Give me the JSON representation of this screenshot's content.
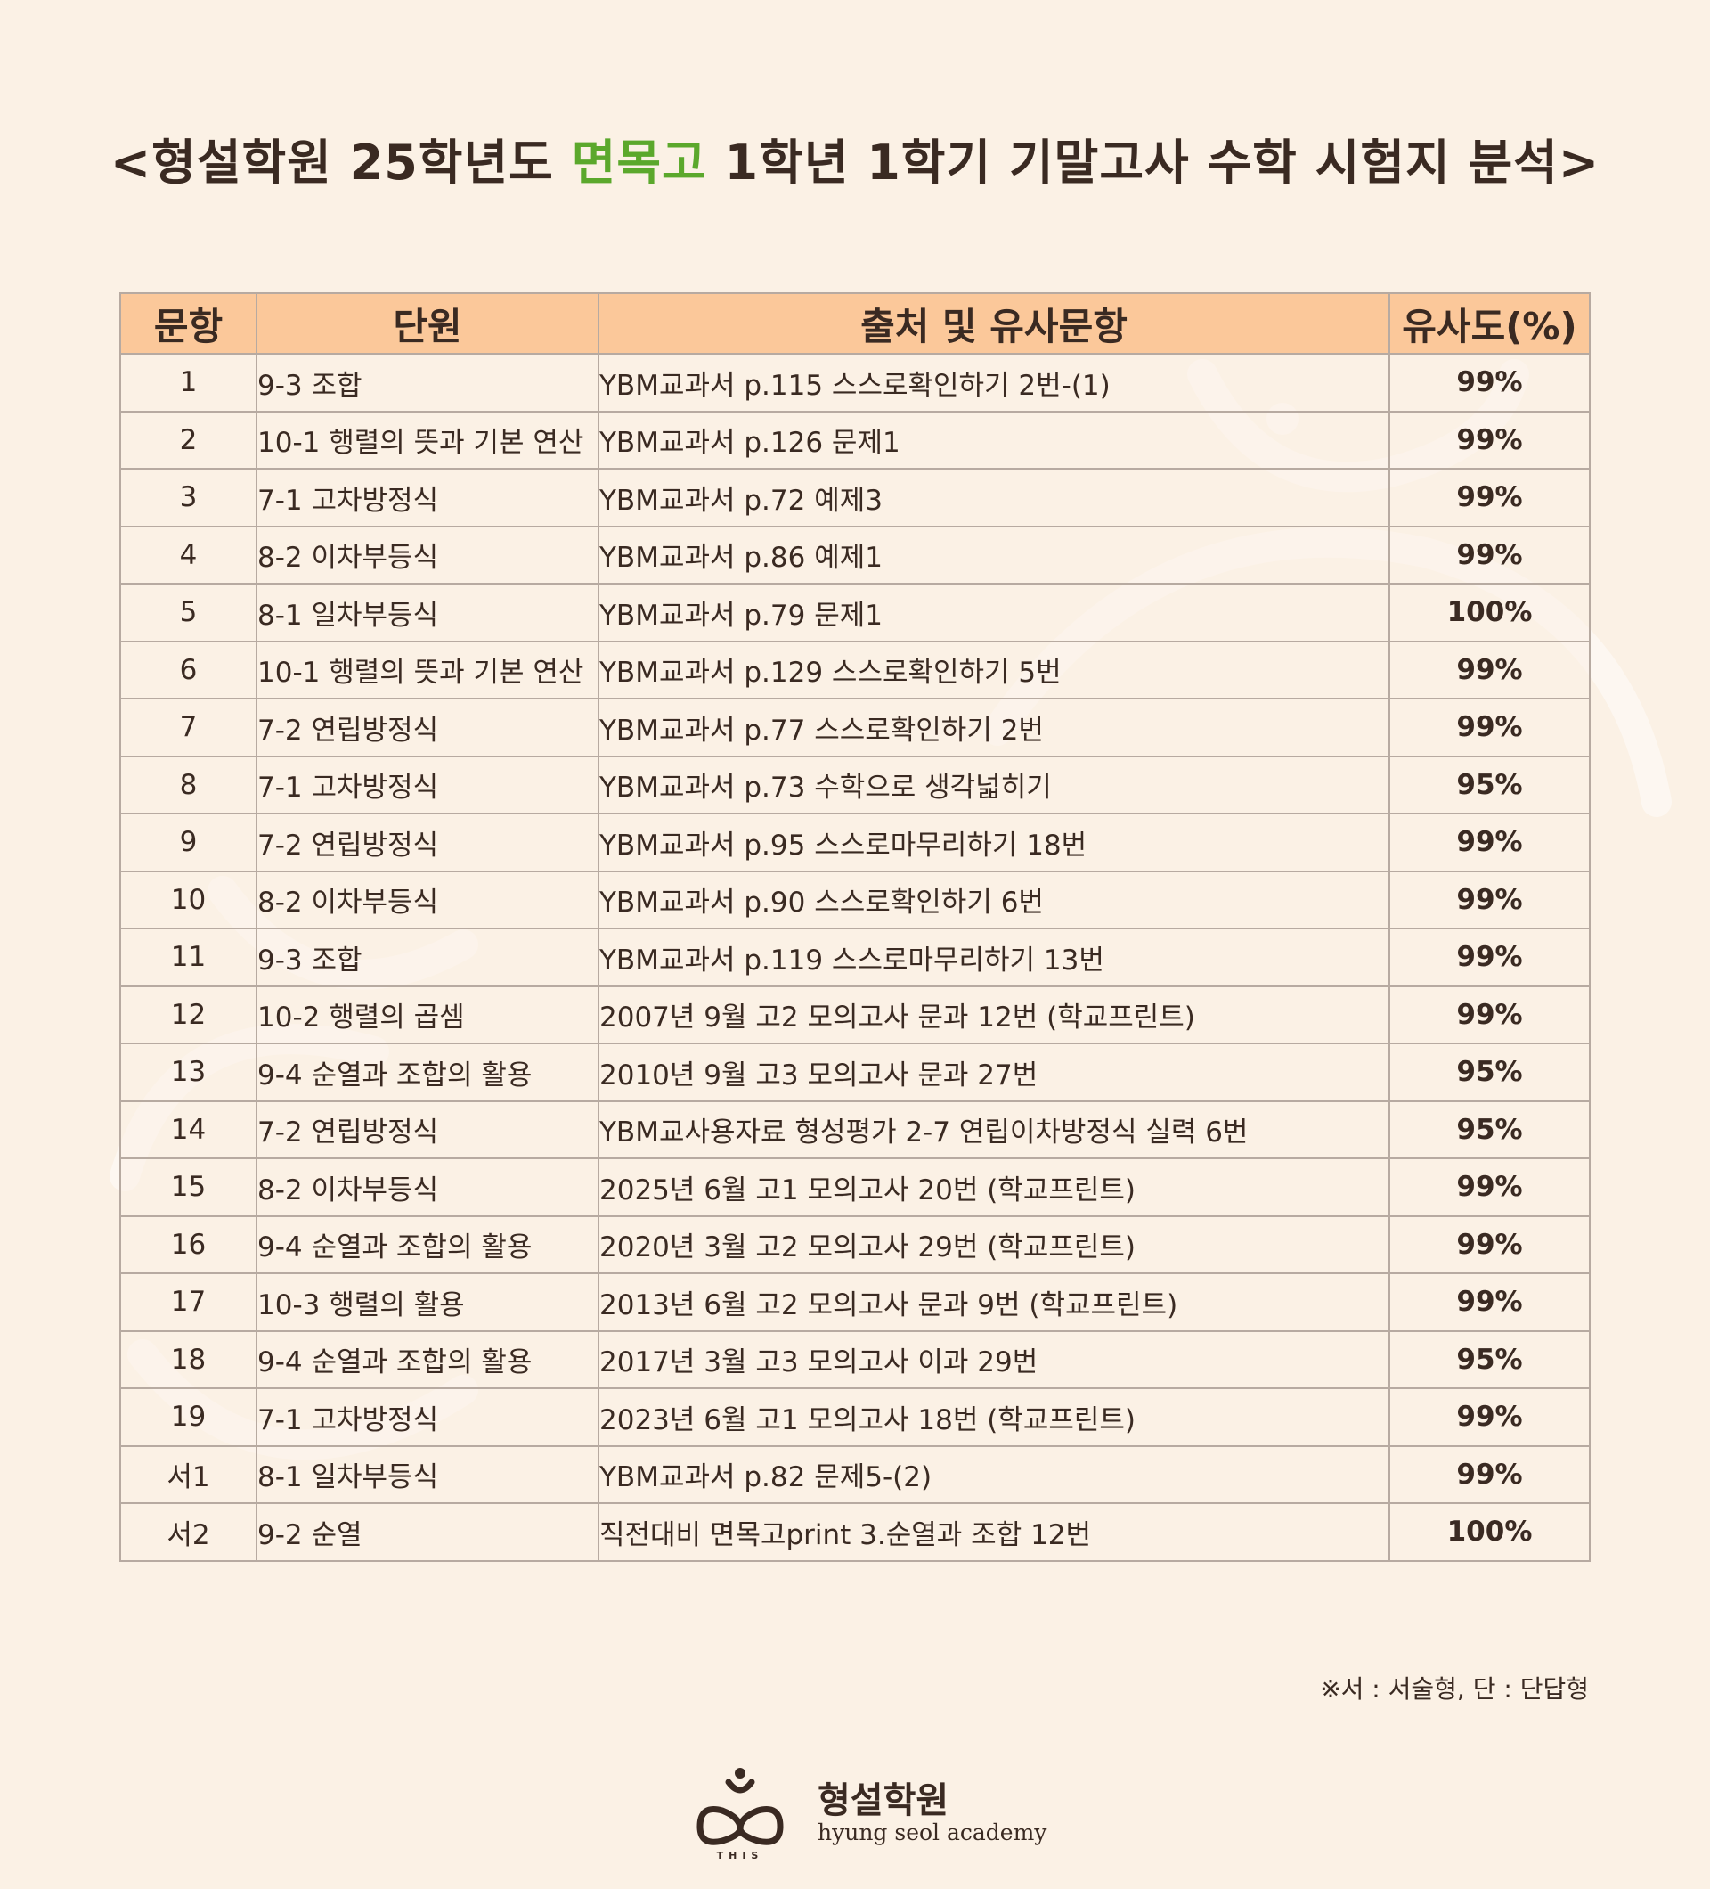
{
  "title": {
    "prefix": "<형설학원 25학년도 ",
    "highlight": "면목고",
    "suffix": " 1학년 1학기 기말고사 수학 시험지 분석>"
  },
  "colors": {
    "highlight": "#5ba82c",
    "similarity": "#e8461c",
    "header_bg": "#fbc89a",
    "background": "#fbf1e5"
  },
  "table": {
    "headers": [
      "문항",
      "단원",
      "출처 및 유사문항",
      "유사도(%)"
    ],
    "rows": [
      {
        "no": "1",
        "unit": "9-3 조합",
        "source": "YBM교과서 p.115 스스로확인하기 2번-(1)",
        "similarity": "99%"
      },
      {
        "no": "2",
        "unit": "10-1 행렬의 뜻과 기본 연산",
        "source": "YBM교과서 p.126 문제1",
        "similarity": "99%"
      },
      {
        "no": "3",
        "unit": "7-1 고차방정식",
        "source": "YBM교과서 p.72 예제3",
        "similarity": "99%"
      },
      {
        "no": "4",
        "unit": "8-2 이차부등식",
        "source": "YBM교과서 p.86 예제1",
        "similarity": "99%"
      },
      {
        "no": "5",
        "unit": "8-1 일차부등식",
        "source": "YBM교과서 p.79 문제1",
        "similarity": "100%"
      },
      {
        "no": "6",
        "unit": "10-1 행렬의 뜻과 기본 연산",
        "source": "YBM교과서 p.129 스스로확인하기 5번",
        "similarity": "99%"
      },
      {
        "no": "7",
        "unit": "7-2 연립방정식",
        "source": "YBM교과서 p.77 스스로확인하기 2번",
        "similarity": "99%"
      },
      {
        "no": "8",
        "unit": "7-1 고차방정식",
        "source": "YBM교과서 p.73 수학으로 생각넓히기",
        "similarity": "95%"
      },
      {
        "no": "9",
        "unit": "7-2 연립방정식",
        "source": "YBM교과서 p.95 스스로마무리하기 18번",
        "similarity": "99%"
      },
      {
        "no": "10",
        "unit": "8-2 이차부등식",
        "source": "YBM교과서 p.90 스스로확인하기 6번",
        "similarity": "99%"
      },
      {
        "no": "11",
        "unit": "9-3 조합",
        "source": "YBM교과서 p.119 스스로마무리하기 13번",
        "similarity": "99%"
      },
      {
        "no": "12",
        "unit": "10-2 행렬의 곱셈",
        "source": "2007년 9월 고2 모의고사 문과 12번 (학교프린트)",
        "similarity": "99%"
      },
      {
        "no": "13",
        "unit": "9-4 순열과 조합의 활용",
        "source": "2010년 9월 고3 모의고사 문과 27번",
        "similarity": "95%"
      },
      {
        "no": "14",
        "unit": "7-2 연립방정식",
        "source": "YBM교사용자료 형성평가 2-7 연립이차방정식 실력 6번",
        "similarity": "95%"
      },
      {
        "no": "15",
        "unit": "8-2 이차부등식",
        "source": "2025년 6월 고1 모의고사 20번 (학교프린트)",
        "similarity": "99%"
      },
      {
        "no": "16",
        "unit": "9-4 순열과 조합의 활용",
        "source": "2020년 3월 고2 모의고사 29번 (학교프린트)",
        "similarity": "99%"
      },
      {
        "no": "17",
        "unit": "10-3 행렬의 활용",
        "source": "2013년 6월 고2 모의고사 문과 9번 (학교프린트)",
        "similarity": "99%"
      },
      {
        "no": "18",
        "unit": "9-4 순열과 조합의 활용",
        "source": "2017년 3월 고3 모의고사 이과 29번",
        "similarity": "95%"
      },
      {
        "no": "19",
        "unit": "7-1 고차방정식",
        "source": "2023년 6월 고1 모의고사 18번 (학교프린트)",
        "similarity": "99%"
      },
      {
        "no": "서1",
        "unit": "8-1 일차부등식",
        "source": "YBM교과서 p.82 문제5-(2)",
        "similarity": "99%"
      },
      {
        "no": "서2",
        "unit": "9-2 순열",
        "source": "직전대비 면목고print 3.순열과 조합 12번",
        "similarity": "100%"
      }
    ]
  },
  "footnote": "※서 : 서술형, 단 : 단답형",
  "logo": {
    "name": "형설학원",
    "subtitle": "hyung seol academy",
    "icon": "academy-logo-icon",
    "mark_letters": "THIS"
  }
}
